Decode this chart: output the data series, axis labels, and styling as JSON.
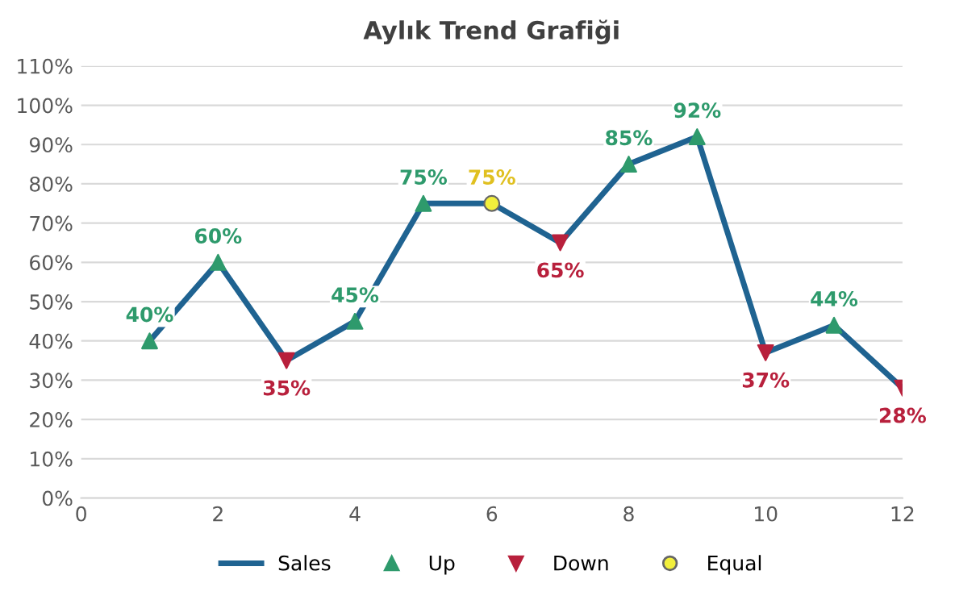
{
  "chart_data": {
    "type": "line",
    "title": "Aylık Trend Grafiği",
    "x": [
      1,
      2,
      3,
      4,
      5,
      6,
      7,
      8,
      9,
      10,
      11,
      12
    ],
    "series": [
      {
        "name": "Sales",
        "color": "#1f6391",
        "marker": "none",
        "values": [
          40,
          60,
          35,
          45,
          75,
          75,
          65,
          85,
          92,
          37,
          44,
          28
        ]
      },
      {
        "name": "Up",
        "type": "scatter",
        "color": "#2e9a6c",
        "marker": "triangle",
        "values": [
          40,
          60,
          null,
          45,
          75,
          null,
          null,
          85,
          92,
          null,
          44,
          null
        ],
        "value_labels": [
          "40%",
          "60%",
          null,
          "45%",
          "75%",
          null,
          null,
          "85%",
          "92%",
          null,
          "44%",
          null
        ]
      },
      {
        "name": "Down",
        "type": "scatter",
        "color": "#b8203c",
        "marker": "triangle-down",
        "values": [
          null,
          null,
          35,
          null,
          null,
          null,
          65,
          null,
          null,
          37,
          null,
          28
        ],
        "value_labels": [
          null,
          null,
          "35%",
          null,
          null,
          null,
          "65%",
          null,
          null,
          "37%",
          null,
          "28%"
        ]
      },
      {
        "name": "Equal",
        "type": "scatter",
        "color": "#f2ef3c",
        "marker": "circle",
        "values": [
          null,
          null,
          null,
          null,
          null,
          75,
          null,
          null,
          null,
          null,
          null,
          null
        ],
        "value_labels": [
          null,
          null,
          null,
          null,
          null,
          "75%",
          null,
          null,
          null,
          null,
          null,
          null
        ]
      }
    ],
    "xlim": [
      0,
      12
    ],
    "xticks": [
      0,
      2,
      4,
      6,
      8,
      10,
      12
    ],
    "ylim": [
      0,
      110
    ],
    "yticks": [
      {
        "value": 0,
        "label": "0%"
      },
      {
        "value": 10,
        "label": "10%"
      },
      {
        "value": 20,
        "label": "20%"
      },
      {
        "value": 30,
        "label": "30%"
      },
      {
        "value": 40,
        "label": "40%"
      },
      {
        "value": 50,
        "label": "50%"
      },
      {
        "value": 60,
        "label": "60%"
      },
      {
        "value": 70,
        "label": "70%"
      },
      {
        "value": 80,
        "label": "80%"
      },
      {
        "value": 90,
        "label": "90%"
      },
      {
        "value": 100,
        "label": "100%"
      },
      {
        "value": 110,
        "label": "110%"
      }
    ],
    "grid": "y",
    "legend": "bottom",
    "line_style": "solid"
  }
}
